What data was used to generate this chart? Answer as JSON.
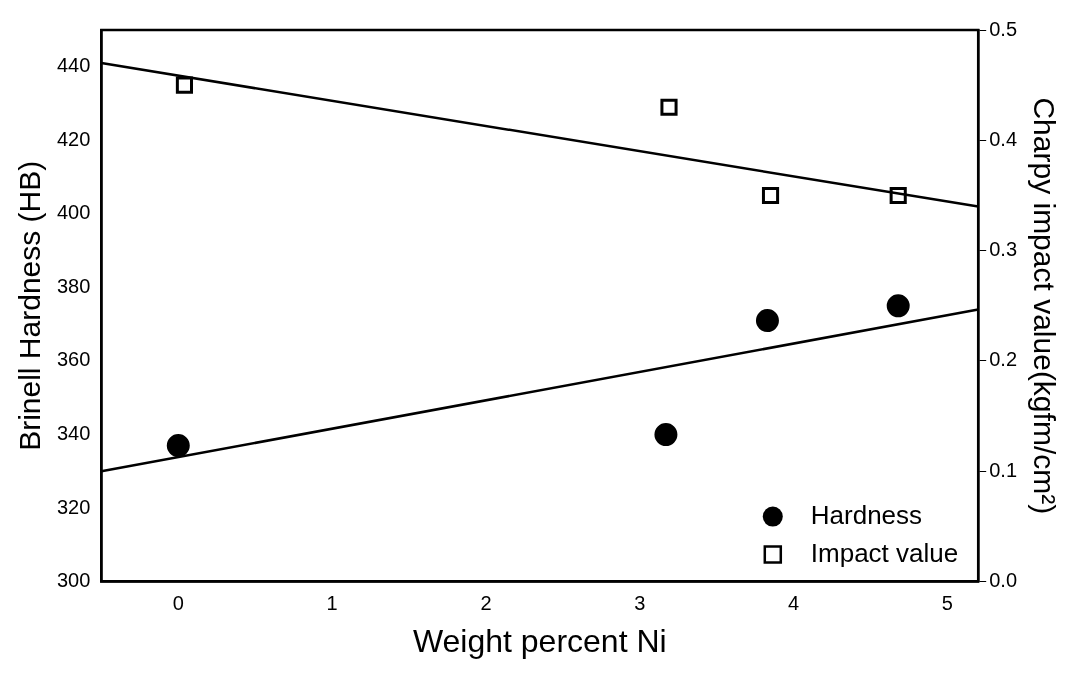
{
  "chart_data": {
    "type": "scatter",
    "xlabel": "Weight percent Ni",
    "ylabel": "Brinell Hardness (HB)",
    "y2label": "Charpy impact value(kgfm/cm²)",
    "xlim": [
      -0.5,
      5.2
    ],
    "xticks": [
      0,
      1,
      2,
      3,
      4,
      5
    ],
    "ylim": [
      300,
      450
    ],
    "yticks": [
      300,
      320,
      340,
      360,
      380,
      400,
      420,
      440
    ],
    "y2lim": [
      0,
      0.5
    ],
    "y2ticks": [
      {
        "value": 0,
        "label": "0.0"
      },
      0.1,
      0.2,
      0.3,
      0.4,
      0.5
    ],
    "grid": false,
    "legend": "bottom right",
    "series": [
      {
        "name": "Hardness",
        "type": "scatter",
        "marker": "circle",
        "color": "#000000",
        "x": [
          0,
          3.17,
          3.83,
          4.68
        ],
        "values": [
          337,
          340,
          371,
          375
        ]
      },
      {
        "name": "Impact value",
        "type": "scatter",
        "marker": "square",
        "axis": "y2",
        "color": "#000000",
        "x": [
          0.04,
          3.19,
          3.85,
          4.68
        ],
        "values": [
          0.45,
          0.43,
          0.35,
          0.35
        ]
      },
      {
        "type": "line",
        "marker": "none",
        "line_style": "solid",
        "color": "#000000",
        "x": [
          -0.5,
          5.2
        ],
        "values": [
          330,
          374
        ]
      },
      {
        "type": "line",
        "marker": "none",
        "line_style": "solid",
        "axis": "y2",
        "color": "#000000",
        "x": [
          -0.5,
          5.2
        ],
        "values": [
          0.47,
          0.34
        ]
      }
    ]
  }
}
